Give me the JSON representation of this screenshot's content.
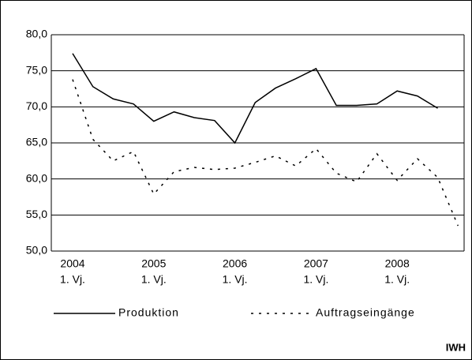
{
  "chart_data": {
    "type": "line",
    "categories": [
      "2004",
      null,
      null,
      null,
      "2005",
      null,
      null,
      null,
      "2006",
      null,
      null,
      null,
      "2007",
      null,
      null,
      null,
      "2008",
      null,
      null,
      null
    ],
    "category_sublabel": "1. Vj.",
    "series": [
      {
        "name": "Produktion",
        "color": "#000000",
        "dash": "solid",
        "values": [
          77.4,
          72.8,
          71.1,
          70.4,
          68.0,
          69.3,
          68.5,
          68.1,
          65.0,
          70.6,
          72.6,
          73.9,
          75.3,
          70.2,
          70.2,
          70.4,
          72.2,
          71.5,
          69.8,
          null
        ]
      },
      {
        "name": "Auftragseingänge",
        "color": "#000000",
        "dash": "dotted",
        "values": [
          73.8,
          65.5,
          62.5,
          63.8,
          57.9,
          61.0,
          61.6,
          61.3,
          61.5,
          62.3,
          63.2,
          61.8,
          64.2,
          60.8,
          59.6,
          63.5,
          59.8,
          62.8,
          60.2,
          53.5
        ]
      }
    ],
    "ylim": [
      50,
      80
    ],
    "yticks": [
      {
        "value": 50,
        "label": "50,0"
      },
      {
        "value": 55,
        "label": "55,0"
      },
      {
        "value": 60,
        "label": "60,0"
      },
      {
        "value": 65,
        "label": "65,0"
      },
      {
        "value": 70,
        "label": "70,0"
      },
      {
        "value": 75,
        "label": "75,0"
      },
      {
        "value": 80,
        "label": "80,0"
      }
    ],
    "grid": true,
    "source": "IWH"
  }
}
